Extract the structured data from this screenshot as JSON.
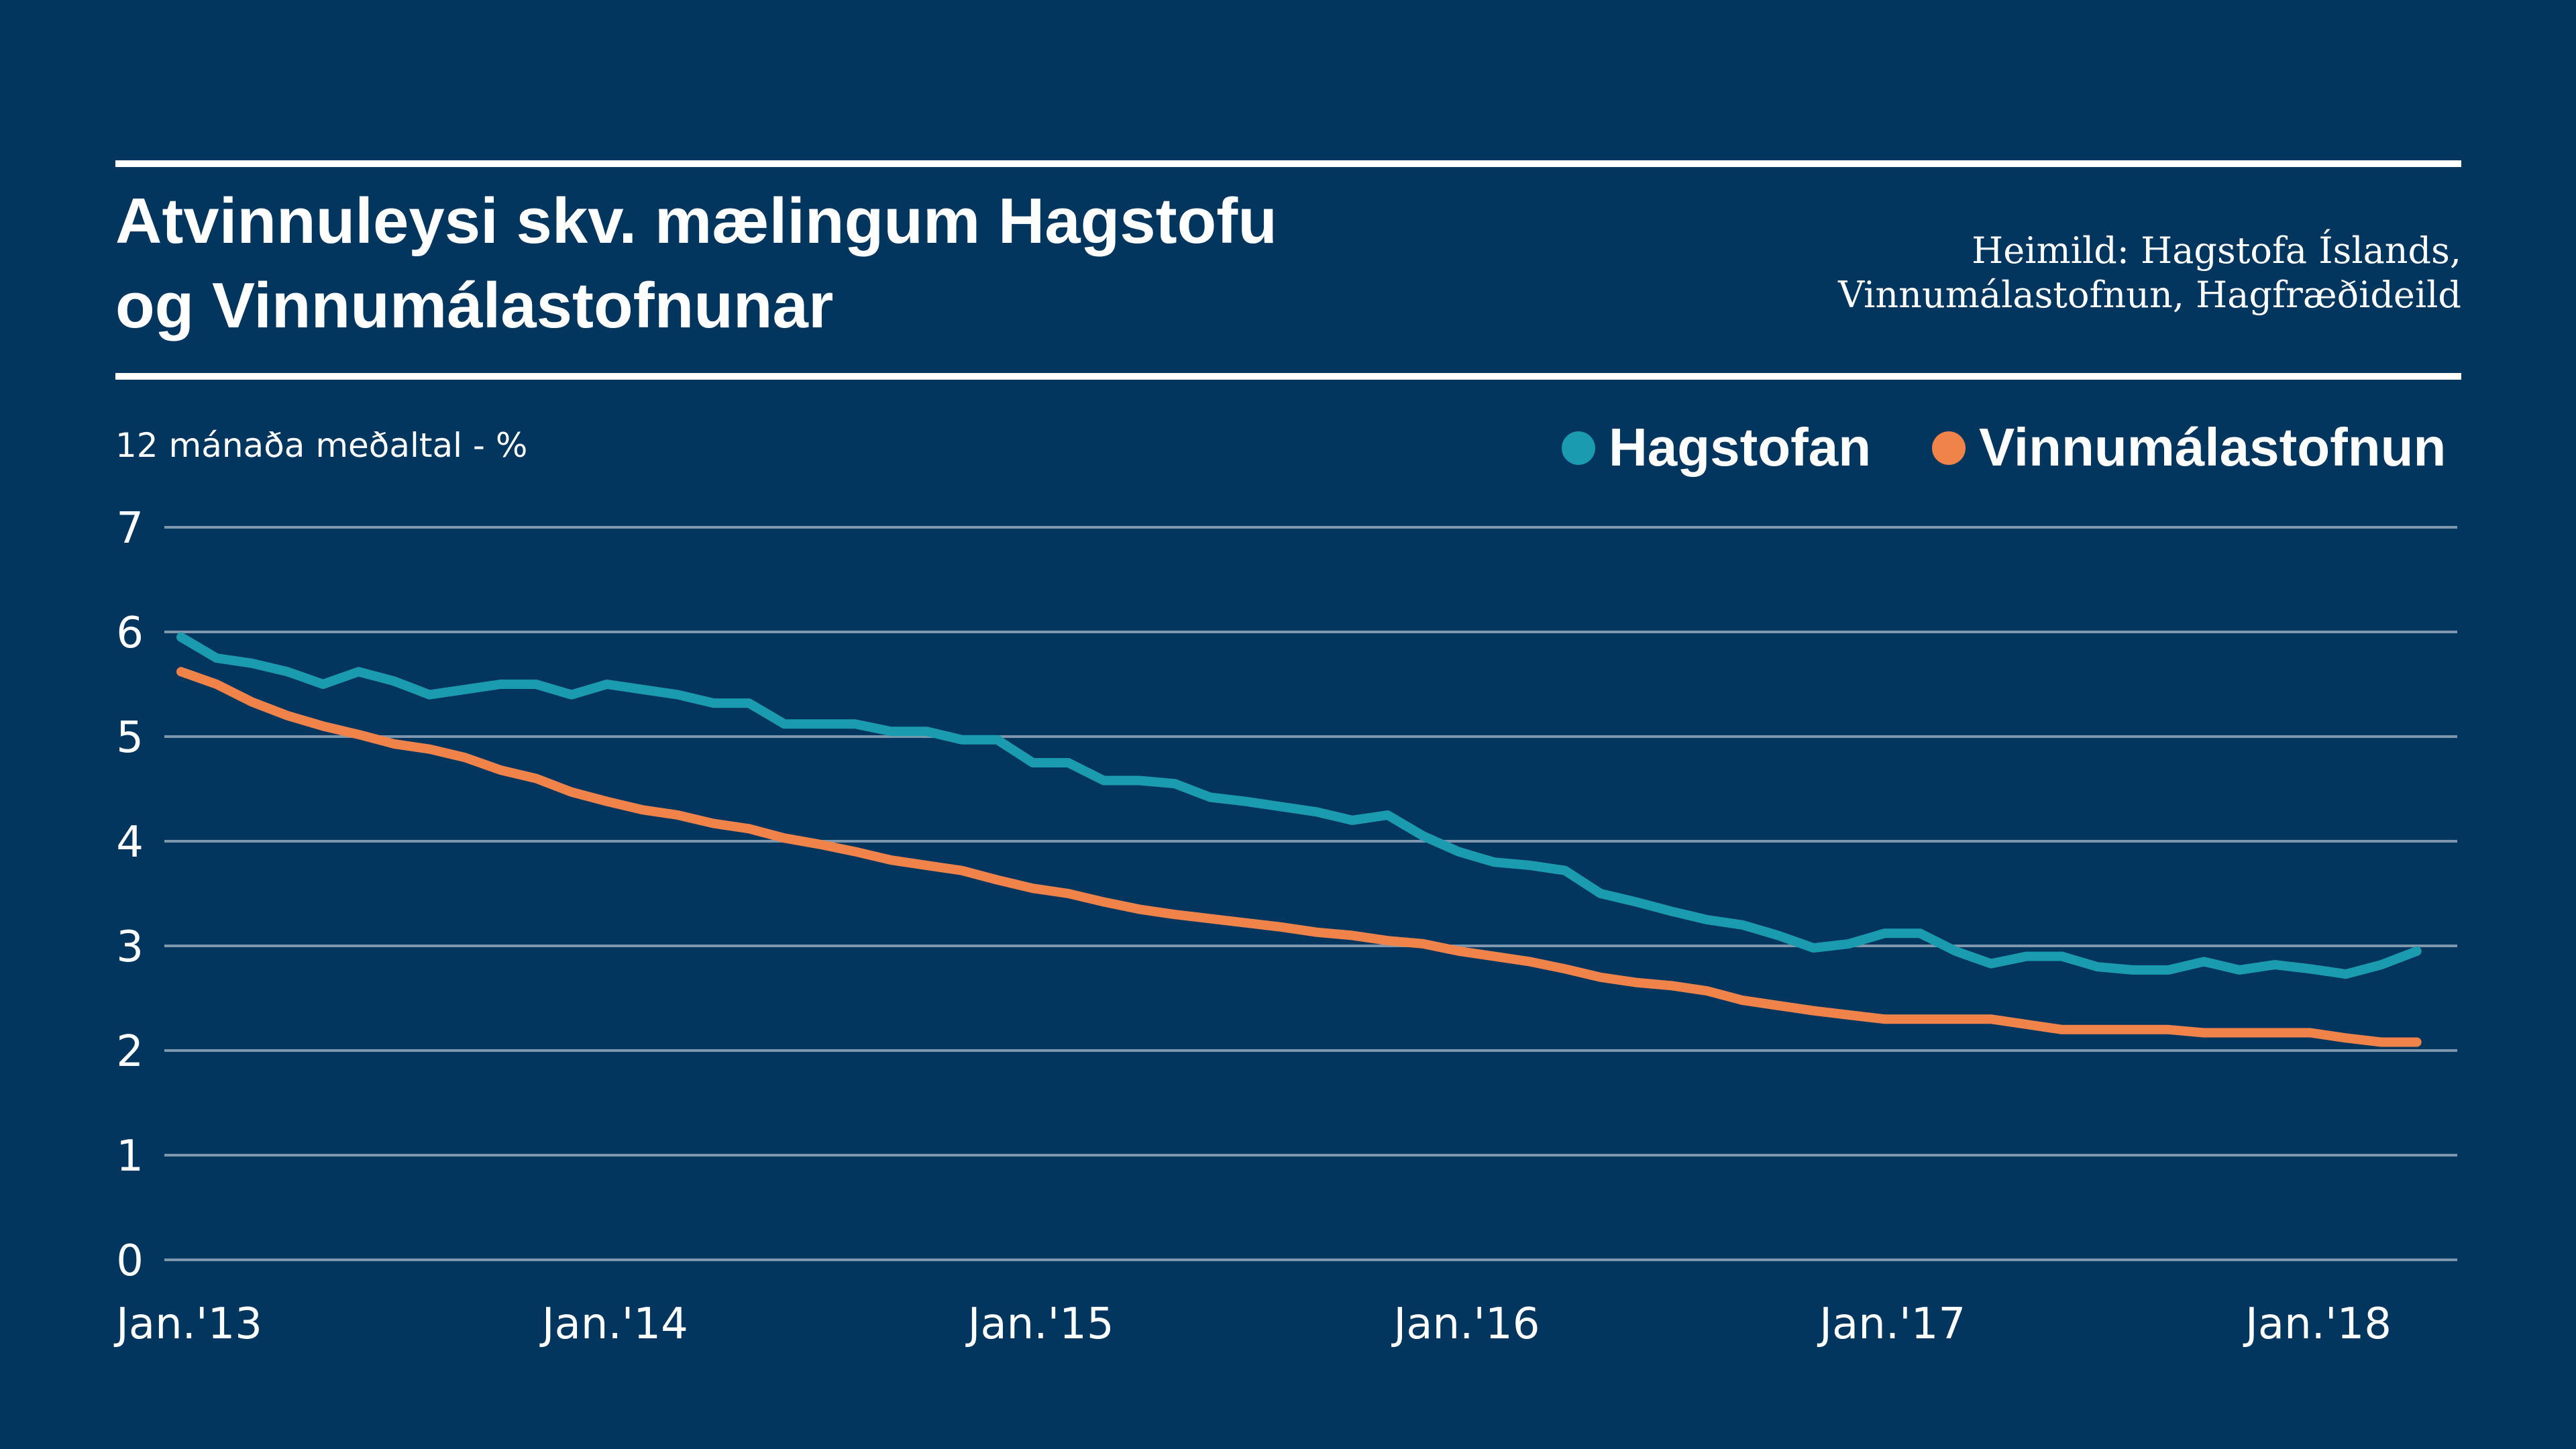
{
  "header": {
    "title_line1": "Atvinnuleysi skv. mælingum Hagstofu",
    "title_line2": "og Vinnumálastofnunar",
    "source_line1": "Heimild: Hagstofa Íslands,",
    "source_line2": "Vinnumálastofnun, Hagfræðideild"
  },
  "colors": {
    "background": "#03365f",
    "text": "#ffffff",
    "grid": "#7f97ad",
    "hagstofan": "#1a9bb0",
    "vinnumalastofnun": "#f0834a"
  },
  "chart_data": {
    "type": "line",
    "title": "Atvinnuleysi skv. mælingum Hagstofu og Vinnumálastofnunar",
    "ylabel": "12 mánaða meðaltal - %",
    "xlabel": "",
    "ylim": [
      0,
      7
    ],
    "yticks": [
      0,
      1,
      2,
      3,
      4,
      5,
      6,
      7
    ],
    "grid": true,
    "legend_position": "top-right",
    "x_ticks": [
      "Jan.'13",
      "Jan.'14",
      "Jan.'15",
      "Jan.'16",
      "Jan.'17",
      "Jan.'18"
    ],
    "x_tick_months": [
      "2013-01",
      "2014-01",
      "2015-01",
      "2016-01",
      "2017-01",
      "2018-01"
    ],
    "x_range": [
      "2013-01",
      "2018-04"
    ],
    "x_note": "monthly observations, January 2013 through April 2018",
    "series": [
      {
        "name": "Hagstofan",
        "color": "#1a9bb0",
        "values": [
          5.95,
          5.75,
          5.7,
          5.62,
          5.5,
          5.62,
          5.53,
          5.4,
          5.45,
          5.5,
          5.5,
          5.4,
          5.5,
          5.45,
          5.4,
          5.32,
          5.32,
          5.12,
          5.12,
          5.12,
          5.05,
          5.05,
          4.97,
          4.97,
          4.75,
          4.75,
          4.58,
          4.58,
          4.55,
          4.42,
          4.38,
          4.33,
          4.28,
          4.2,
          4.25,
          4.05,
          3.9,
          3.8,
          3.77,
          3.72,
          3.5,
          3.42,
          3.33,
          3.25,
          3.2,
          3.1,
          2.98,
          3.02,
          3.12,
          3.12,
          2.95,
          2.83,
          2.9,
          2.9,
          2.8,
          2.77,
          2.77,
          2.85,
          2.77,
          2.82,
          2.78,
          2.73,
          2.82,
          2.95
        ]
      },
      {
        "name": "Vinnumálastofnun",
        "color": "#f0834a",
        "values": [
          5.62,
          5.5,
          5.33,
          5.2,
          5.1,
          5.02,
          4.93,
          4.88,
          4.8,
          4.68,
          4.6,
          4.47,
          4.38,
          4.3,
          4.25,
          4.17,
          4.12,
          4.03,
          3.97,
          3.9,
          3.82,
          3.77,
          3.72,
          3.63,
          3.55,
          3.5,
          3.42,
          3.35,
          3.3,
          3.26,
          3.22,
          3.18,
          3.13,
          3.1,
          3.05,
          3.02,
          2.95,
          2.9,
          2.85,
          2.78,
          2.7,
          2.65,
          2.62,
          2.57,
          2.48,
          2.43,
          2.38,
          2.34,
          2.3,
          2.3,
          2.3,
          2.3,
          2.25,
          2.2,
          2.2,
          2.2,
          2.2,
          2.17,
          2.17,
          2.17,
          2.17,
          2.12,
          2.08,
          2.08
        ]
      }
    ]
  }
}
